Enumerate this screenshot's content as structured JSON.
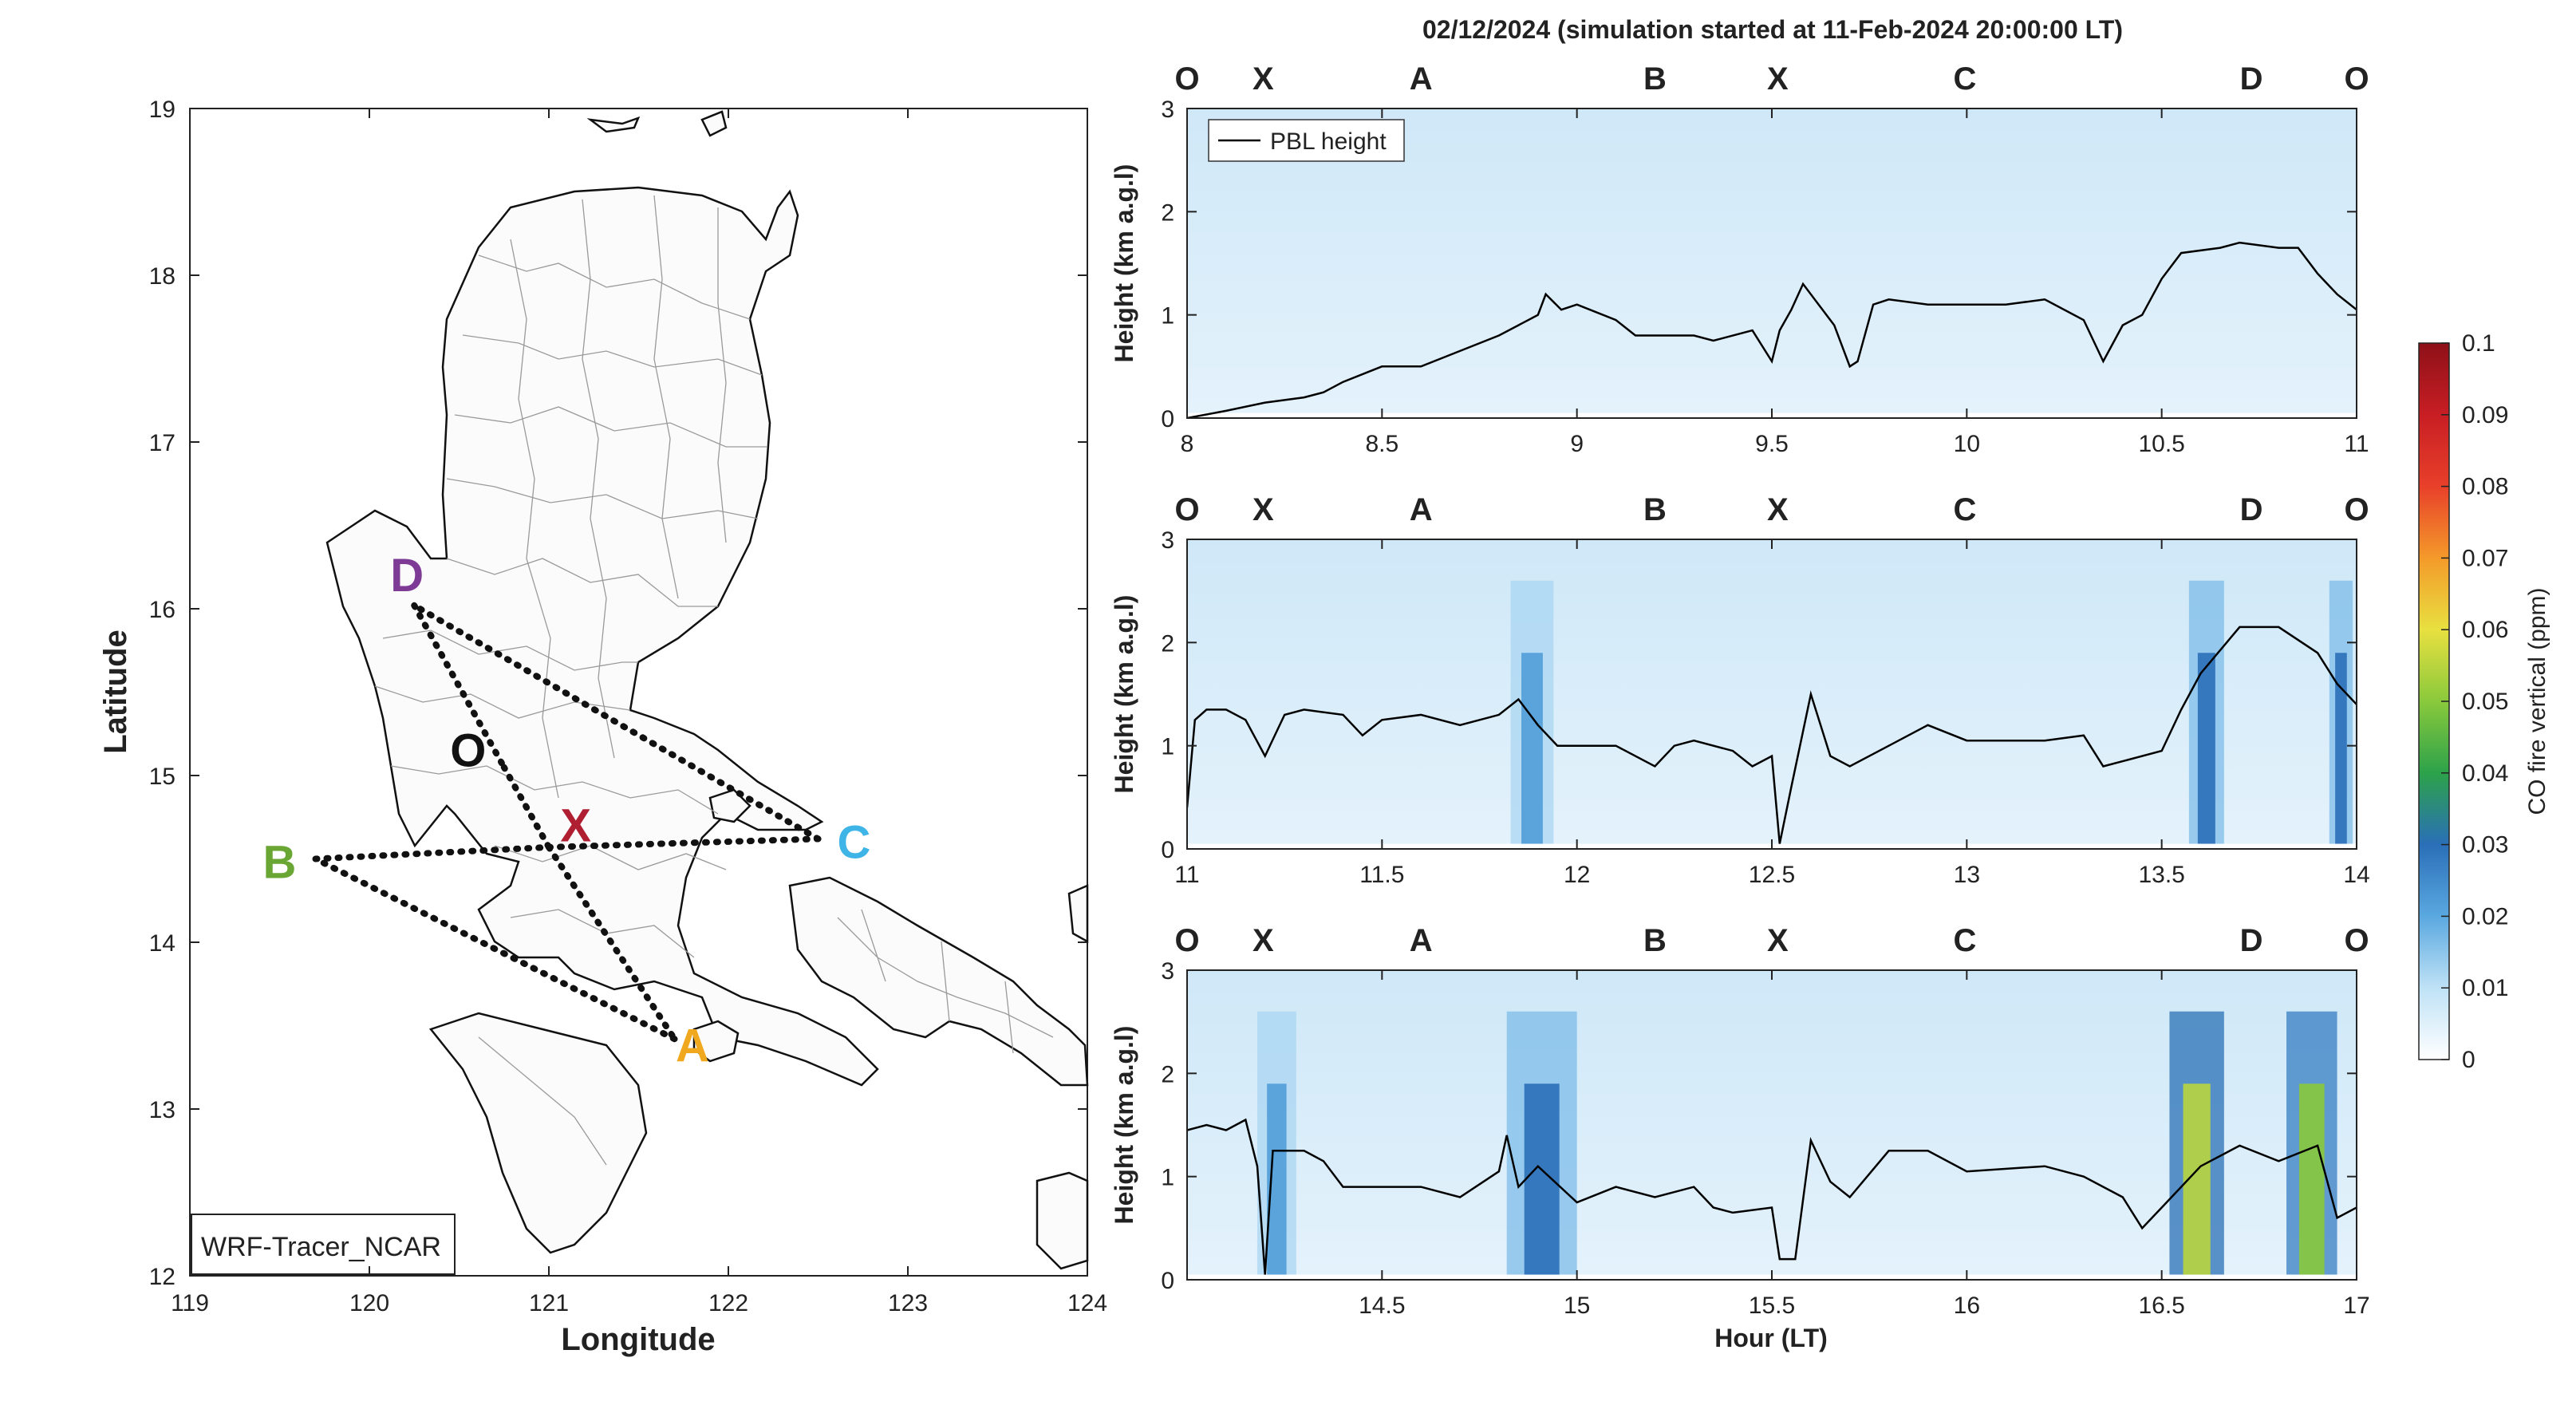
{
  "figure": {
    "title": "02/12/2024 (simulation started at 11-Feb-2024 20:00:00 LT)",
    "colors": {
      "X": "#b01e32",
      "A": "#f0a81e",
      "B": "#6aa634",
      "C": "#3fb4e6",
      "D": "#7e3b96",
      "O": "#111111"
    }
  },
  "map": {
    "label": "WRF-Tracer_NCAR",
    "xlabel": "Longitude",
    "ylabel": "Latitude",
    "xlim": [
      119,
      124
    ],
    "ylim": [
      12,
      19
    ],
    "xticks": [
      "119",
      "120",
      "121",
      "122",
      "123",
      "124"
    ],
    "yticks": [
      "12",
      "13",
      "14",
      "15",
      "16",
      "17",
      "18",
      "19"
    ],
    "points": [
      {
        "name": "D",
        "lon": 120.25,
        "lat": 16.02,
        "label_lon": 120.21,
        "label_lat": 16.2
      },
      {
        "name": "O",
        "lon": 120.75,
        "lat": 15.05,
        "label_lon": 120.55,
        "label_lat": 15.15
      },
      {
        "name": "X",
        "lon": 121.0,
        "lat": 14.57,
        "label_lon": 121.15,
        "label_lat": 14.7
      },
      {
        "name": "C",
        "lon": 122.5,
        "lat": 14.62,
        "label_lon": 122.7,
        "label_lat": 14.6
      },
      {
        "name": "B",
        "lon": 119.7,
        "lat": 14.5,
        "label_lon": 119.5,
        "label_lat": 14.48
      },
      {
        "name": "A",
        "lon": 121.7,
        "lat": 13.42,
        "label_lon": 121.8,
        "label_lat": 13.38
      }
    ],
    "routes": [
      [
        "D",
        "O"
      ],
      [
        "O",
        "X"
      ],
      [
        "X",
        "A"
      ],
      [
        "A",
        "B"
      ],
      [
        "B",
        "X"
      ],
      [
        "X",
        "C"
      ],
      [
        "C",
        "D"
      ]
    ]
  },
  "chart_data": {
    "type": "heatmap",
    "xlabel": "Hour (LT)",
    "ylabel": "Height (km a.g.l)",
    "colorbar": {
      "label": "CO fire vertical (ppm)",
      "min": 0,
      "max": 0.1,
      "ticks": [
        "0",
        "0.01",
        "0.02",
        "0.03",
        "0.04",
        "0.05",
        "0.06",
        "0.07",
        "0.08",
        "0.09",
        "0.1"
      ]
    },
    "legend": {
      "entry": "PBL height",
      "placement": "top-left"
    },
    "waypoint_labels": [
      "O",
      "X",
      "A",
      "B",
      "X",
      "C",
      "D",
      "O"
    ],
    "panels": [
      {
        "xlim": [
          8,
          11
        ],
        "ylim": [
          0,
          3
        ],
        "xticks": [
          "8",
          "8.5",
          "9",
          "9.5",
          "10",
          "10.5",
          "11"
        ],
        "yticks": [
          "0",
          "1",
          "2",
          "3"
        ],
        "pbl": [
          [
            8.0,
            0.0
          ],
          [
            8.1,
            0.07
          ],
          [
            8.2,
            0.15
          ],
          [
            8.3,
            0.2
          ],
          [
            8.35,
            0.25
          ],
          [
            8.4,
            0.35
          ],
          [
            8.5,
            0.5
          ],
          [
            8.6,
            0.5
          ],
          [
            8.7,
            0.65
          ],
          [
            8.8,
            0.8
          ],
          [
            8.85,
            0.9
          ],
          [
            8.9,
            1.0
          ],
          [
            8.92,
            1.2
          ],
          [
            8.96,
            1.05
          ],
          [
            9.0,
            1.1
          ],
          [
            9.1,
            0.95
          ],
          [
            9.15,
            0.8
          ],
          [
            9.3,
            0.8
          ],
          [
            9.35,
            0.75
          ],
          [
            9.45,
            0.85
          ],
          [
            9.5,
            0.55
          ],
          [
            9.52,
            0.85
          ],
          [
            9.55,
            1.05
          ],
          [
            9.58,
            1.3
          ],
          [
            9.62,
            1.1
          ],
          [
            9.66,
            0.9
          ],
          [
            9.7,
            0.5
          ],
          [
            9.72,
            0.55
          ],
          [
            9.76,
            1.1
          ],
          [
            9.8,
            1.15
          ],
          [
            9.9,
            1.1
          ],
          [
            10.0,
            1.1
          ],
          [
            10.1,
            1.1
          ],
          [
            10.2,
            1.15
          ],
          [
            10.3,
            0.95
          ],
          [
            10.35,
            0.55
          ],
          [
            10.4,
            0.9
          ],
          [
            10.45,
            1.0
          ],
          [
            10.5,
            1.35
          ],
          [
            10.55,
            1.6
          ],
          [
            10.65,
            1.65
          ],
          [
            10.7,
            1.7
          ],
          [
            10.8,
            1.65
          ],
          [
            10.85,
            1.65
          ],
          [
            10.9,
            1.4
          ],
          [
            10.95,
            1.2
          ],
          [
            11.0,
            1.05
          ]
        ],
        "plumes": []
      },
      {
        "xlim": [
          11,
          14
        ],
        "ylim": [
          0,
          3
        ],
        "xticks": [
          "11",
          "11.5",
          "12",
          "12.5",
          "13",
          "13.5",
          "14"
        ],
        "yticks": [
          "0",
          "1",
          "2",
          "3"
        ],
        "pbl": [
          [
            11.0,
            0.4
          ],
          [
            11.02,
            1.25
          ],
          [
            11.05,
            1.35
          ],
          [
            11.1,
            1.35
          ],
          [
            11.15,
            1.25
          ],
          [
            11.2,
            0.9
          ],
          [
            11.25,
            1.3
          ],
          [
            11.3,
            1.35
          ],
          [
            11.4,
            1.3
          ],
          [
            11.45,
            1.1
          ],
          [
            11.5,
            1.25
          ],
          [
            11.6,
            1.3
          ],
          [
            11.7,
            1.2
          ],
          [
            11.8,
            1.3
          ],
          [
            11.85,
            1.45
          ],
          [
            11.9,
            1.2
          ],
          [
            11.95,
            1.0
          ],
          [
            12.0,
            1.0
          ],
          [
            12.1,
            1.0
          ],
          [
            12.2,
            0.8
          ],
          [
            12.25,
            1.0
          ],
          [
            12.3,
            1.05
          ],
          [
            12.4,
            0.95
          ],
          [
            12.45,
            0.8
          ],
          [
            12.5,
            0.9
          ],
          [
            12.52,
            0.05
          ],
          [
            12.55,
            0.6
          ],
          [
            12.6,
            1.5
          ],
          [
            12.65,
            0.9
          ],
          [
            12.7,
            0.8
          ],
          [
            12.8,
            1.0
          ],
          [
            12.9,
            1.2
          ],
          [
            13.0,
            1.05
          ],
          [
            13.2,
            1.05
          ],
          [
            13.3,
            1.1
          ],
          [
            13.35,
            0.8
          ],
          [
            13.4,
            0.85
          ],
          [
            13.5,
            0.95
          ],
          [
            13.55,
            1.35
          ],
          [
            13.6,
            1.7
          ],
          [
            13.7,
            2.15
          ],
          [
            13.8,
            2.15
          ],
          [
            13.9,
            1.9
          ],
          [
            13.95,
            1.6
          ],
          [
            14.0,
            1.4
          ]
        ],
        "plumes": [
          {
            "x0": 11.83,
            "x1": 11.94,
            "c": 0.022
          },
          {
            "x0": 13.57,
            "x1": 13.66,
            "c": 0.03
          },
          {
            "x0": 13.93,
            "x1": 13.99,
            "c": 0.03
          }
        ]
      },
      {
        "xlim": [
          14,
          17
        ],
        "ylim": [
          0,
          3
        ],
        "xticks": [
          "14.5",
          "15",
          "15.5",
          "16",
          "16.5",
          "17"
        ],
        "yticks": [
          "0",
          "1",
          "2",
          "3"
        ],
        "pbl": [
          [
            14.0,
            1.45
          ],
          [
            14.05,
            1.5
          ],
          [
            14.1,
            1.45
          ],
          [
            14.15,
            1.55
          ],
          [
            14.18,
            1.1
          ],
          [
            14.2,
            0.05
          ],
          [
            14.22,
            1.25
          ],
          [
            14.3,
            1.25
          ],
          [
            14.35,
            1.15
          ],
          [
            14.4,
            0.9
          ],
          [
            14.5,
            0.9
          ],
          [
            14.6,
            0.9
          ],
          [
            14.7,
            0.8
          ],
          [
            14.8,
            1.05
          ],
          [
            14.82,
            1.4
          ],
          [
            14.85,
            0.9
          ],
          [
            14.9,
            1.1
          ],
          [
            15.0,
            0.75
          ],
          [
            15.1,
            0.9
          ],
          [
            15.2,
            0.8
          ],
          [
            15.3,
            0.9
          ],
          [
            15.35,
            0.7
          ],
          [
            15.4,
            0.65
          ],
          [
            15.5,
            0.7
          ],
          [
            15.52,
            0.2
          ],
          [
            15.56,
            0.2
          ],
          [
            15.6,
            1.35
          ],
          [
            15.65,
            0.95
          ],
          [
            15.7,
            0.8
          ],
          [
            15.8,
            1.25
          ],
          [
            15.9,
            1.25
          ],
          [
            16.0,
            1.05
          ],
          [
            16.2,
            1.1
          ],
          [
            16.3,
            1.0
          ],
          [
            16.4,
            0.8
          ],
          [
            16.45,
            0.5
          ],
          [
            16.5,
            0.7
          ],
          [
            16.55,
            0.9
          ],
          [
            16.6,
            1.1
          ],
          [
            16.7,
            1.3
          ],
          [
            16.8,
            1.15
          ],
          [
            16.9,
            1.3
          ],
          [
            16.95,
            0.6
          ],
          [
            17.0,
            0.7
          ]
        ],
        "plumes": [
          {
            "x0": 14.18,
            "x1": 14.28,
            "c": 0.022
          },
          {
            "x0": 14.82,
            "x1": 15.0,
            "c": 0.03
          },
          {
            "x0": 16.52,
            "x1": 16.66,
            "c": 0.055
          },
          {
            "x0": 16.82,
            "x1": 16.95,
            "c": 0.05
          }
        ]
      }
    ]
  }
}
